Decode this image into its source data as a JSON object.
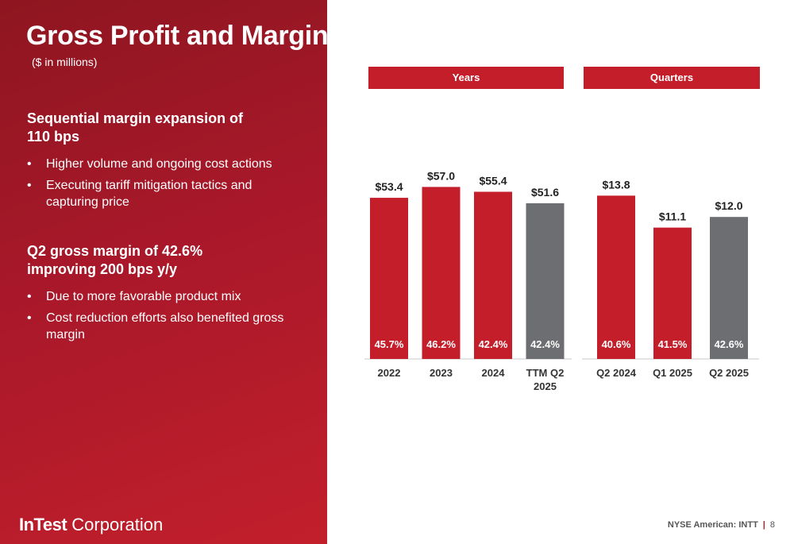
{
  "slide": {
    "title": "Gross Profit and Margin",
    "subtitle": "($ in millions)"
  },
  "sections": [
    {
      "heading": "Sequential margin expansion of 110 bps",
      "bullets": [
        "Higher volume and ongoing cost actions",
        "Executing tariff mitigation tactics and capturing price"
      ]
    },
    {
      "heading": "Q2 gross margin of 42.6% improving 200 bps y/y",
      "bullets": [
        "Due to more favorable product mix",
        "Cost reduction efforts also benefited gross margin"
      ]
    }
  ],
  "brand": {
    "bold": "InTest",
    "rest": " Corporation"
  },
  "footer": {
    "ticker": "NYSE American: INTT",
    "separator": "|",
    "page": "8"
  },
  "colors": {
    "accent": "#c41e2a",
    "gray": "#6d6e71",
    "panel": "#a8182a"
  },
  "chart_data": [
    {
      "type": "bar",
      "header": "Years",
      "categories": [
        [
          "2022"
        ],
        [
          "2023"
        ],
        [
          "2024"
        ],
        [
          "TTM Q2",
          "2025"
        ]
      ],
      "values": [
        53.4,
        57.0,
        55.4,
        51.6
      ],
      "value_labels": [
        "$53.4",
        "$57.0",
        "$55.4",
        "$51.6"
      ],
      "margins": [
        "45.7%",
        "46.2%",
        "42.4%",
        "42.4%"
      ],
      "highlight": [
        false,
        false,
        false,
        true
      ],
      "ylim": [
        0,
        60
      ]
    },
    {
      "type": "bar",
      "header": "Quarters",
      "categories": [
        [
          "Q2 2024"
        ],
        [
          "Q1 2025"
        ],
        [
          "Q2 2025"
        ]
      ],
      "values": [
        13.8,
        11.1,
        12.0
      ],
      "value_labels": [
        "$13.8",
        "$11.1",
        "$12.0"
      ],
      "margins": [
        "40.6%",
        "41.5%",
        "42.6%"
      ],
      "highlight": [
        false,
        false,
        true
      ],
      "ylim": [
        0,
        15.3
      ]
    }
  ]
}
